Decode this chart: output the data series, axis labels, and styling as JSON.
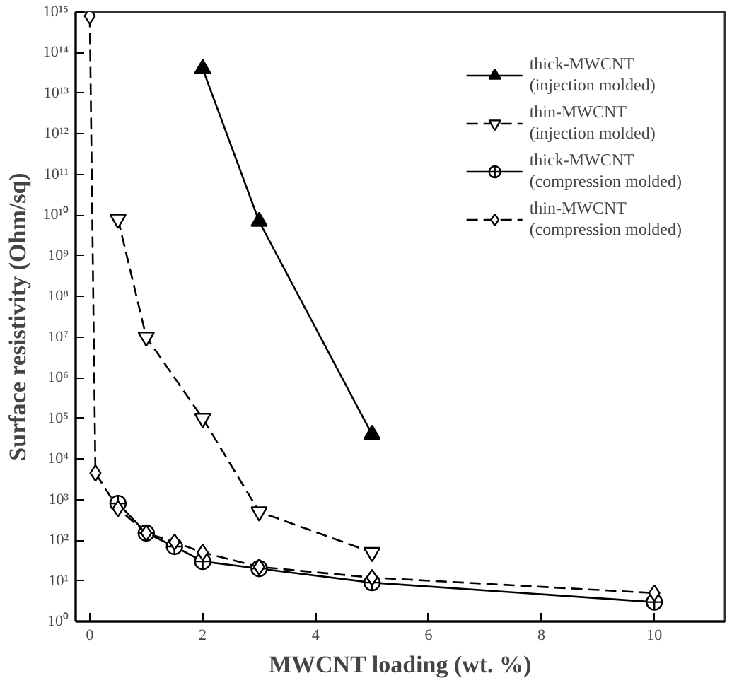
{
  "chart_data": {
    "type": "line",
    "xlabel": "MWCNT loading (wt. %)",
    "ylabel": "Surface resistivity (Ohm/sq)",
    "log": "y",
    "grid": false,
    "legend": "top right",
    "xlim": [
      -0.25,
      11.25
    ],
    "xticks": [
      0,
      2,
      4,
      6,
      8,
      10
    ],
    "ylim": [
      1,
      1000000000000000.0
    ],
    "yticks": [
      {
        "value": 1,
        "label": "10⁰"
      },
      {
        "value": 10,
        "label": "10¹"
      },
      {
        "value": 100,
        "label": "10²"
      },
      {
        "value": 1000,
        "label": "10³"
      },
      {
        "value": 10000,
        "label": "10⁴"
      },
      {
        "value": 100000,
        "label": "10⁵"
      },
      {
        "value": 1000000,
        "label": "10⁶"
      },
      {
        "value": 10000000,
        "label": "10⁷"
      },
      {
        "value": 100000000,
        "label": "10⁸"
      },
      {
        "value": 1000000000,
        "label": "10⁹"
      },
      {
        "value": 10000000000,
        "label": "10¹⁰"
      },
      {
        "value": 100000000000,
        "label": "10¹¹"
      },
      {
        "value": 1000000000000,
        "label": "10¹²"
      },
      {
        "value": 10000000000000,
        "label": "10¹³"
      },
      {
        "value": 100000000000000,
        "label": "10¹⁴"
      },
      {
        "value": 1000000000000000,
        "label": "10¹⁵"
      }
    ],
    "series": [
      {
        "name": "thick-MWCNT (injection molded)",
        "color": "#000000",
        "marker": "triangle",
        "line_style": "solid",
        "x": [
          2,
          3,
          5
        ],
        "values": [
          40000000000000.0,
          7000000000.0,
          40000.0
        ]
      },
      {
        "name": "thin-MWCNT (injection molded)",
        "color": "#000000",
        "marker": "triangle",
        "line_style": "dashed",
        "x": [
          0.5,
          1,
          2,
          3,
          5
        ],
        "values": [
          8000000000.0,
          10000000.0,
          100000.0,
          500,
          50
        ]
      },
      {
        "name": "thick-MWCNT (compression molded)",
        "color": "#000000",
        "marker": "circle_cross",
        "line_style": "solid",
        "x": [
          0.5,
          1,
          1.5,
          2,
          3,
          5,
          10
        ],
        "values": [
          800,
          150,
          70,
          30,
          20,
          9,
          3
        ]
      },
      {
        "name": "thin-MWCNT (compression molded)",
        "color": "#000000",
        "marker": "diamond",
        "line_style": "dashed",
        "x": [
          0,
          0.1,
          0.5,
          1,
          1.5,
          2,
          3,
          5,
          10
        ],
        "values": [
          800000000000000.0,
          4500,
          600,
          150,
          90,
          50,
          22,
          12,
          5
        ]
      }
    ]
  }
}
